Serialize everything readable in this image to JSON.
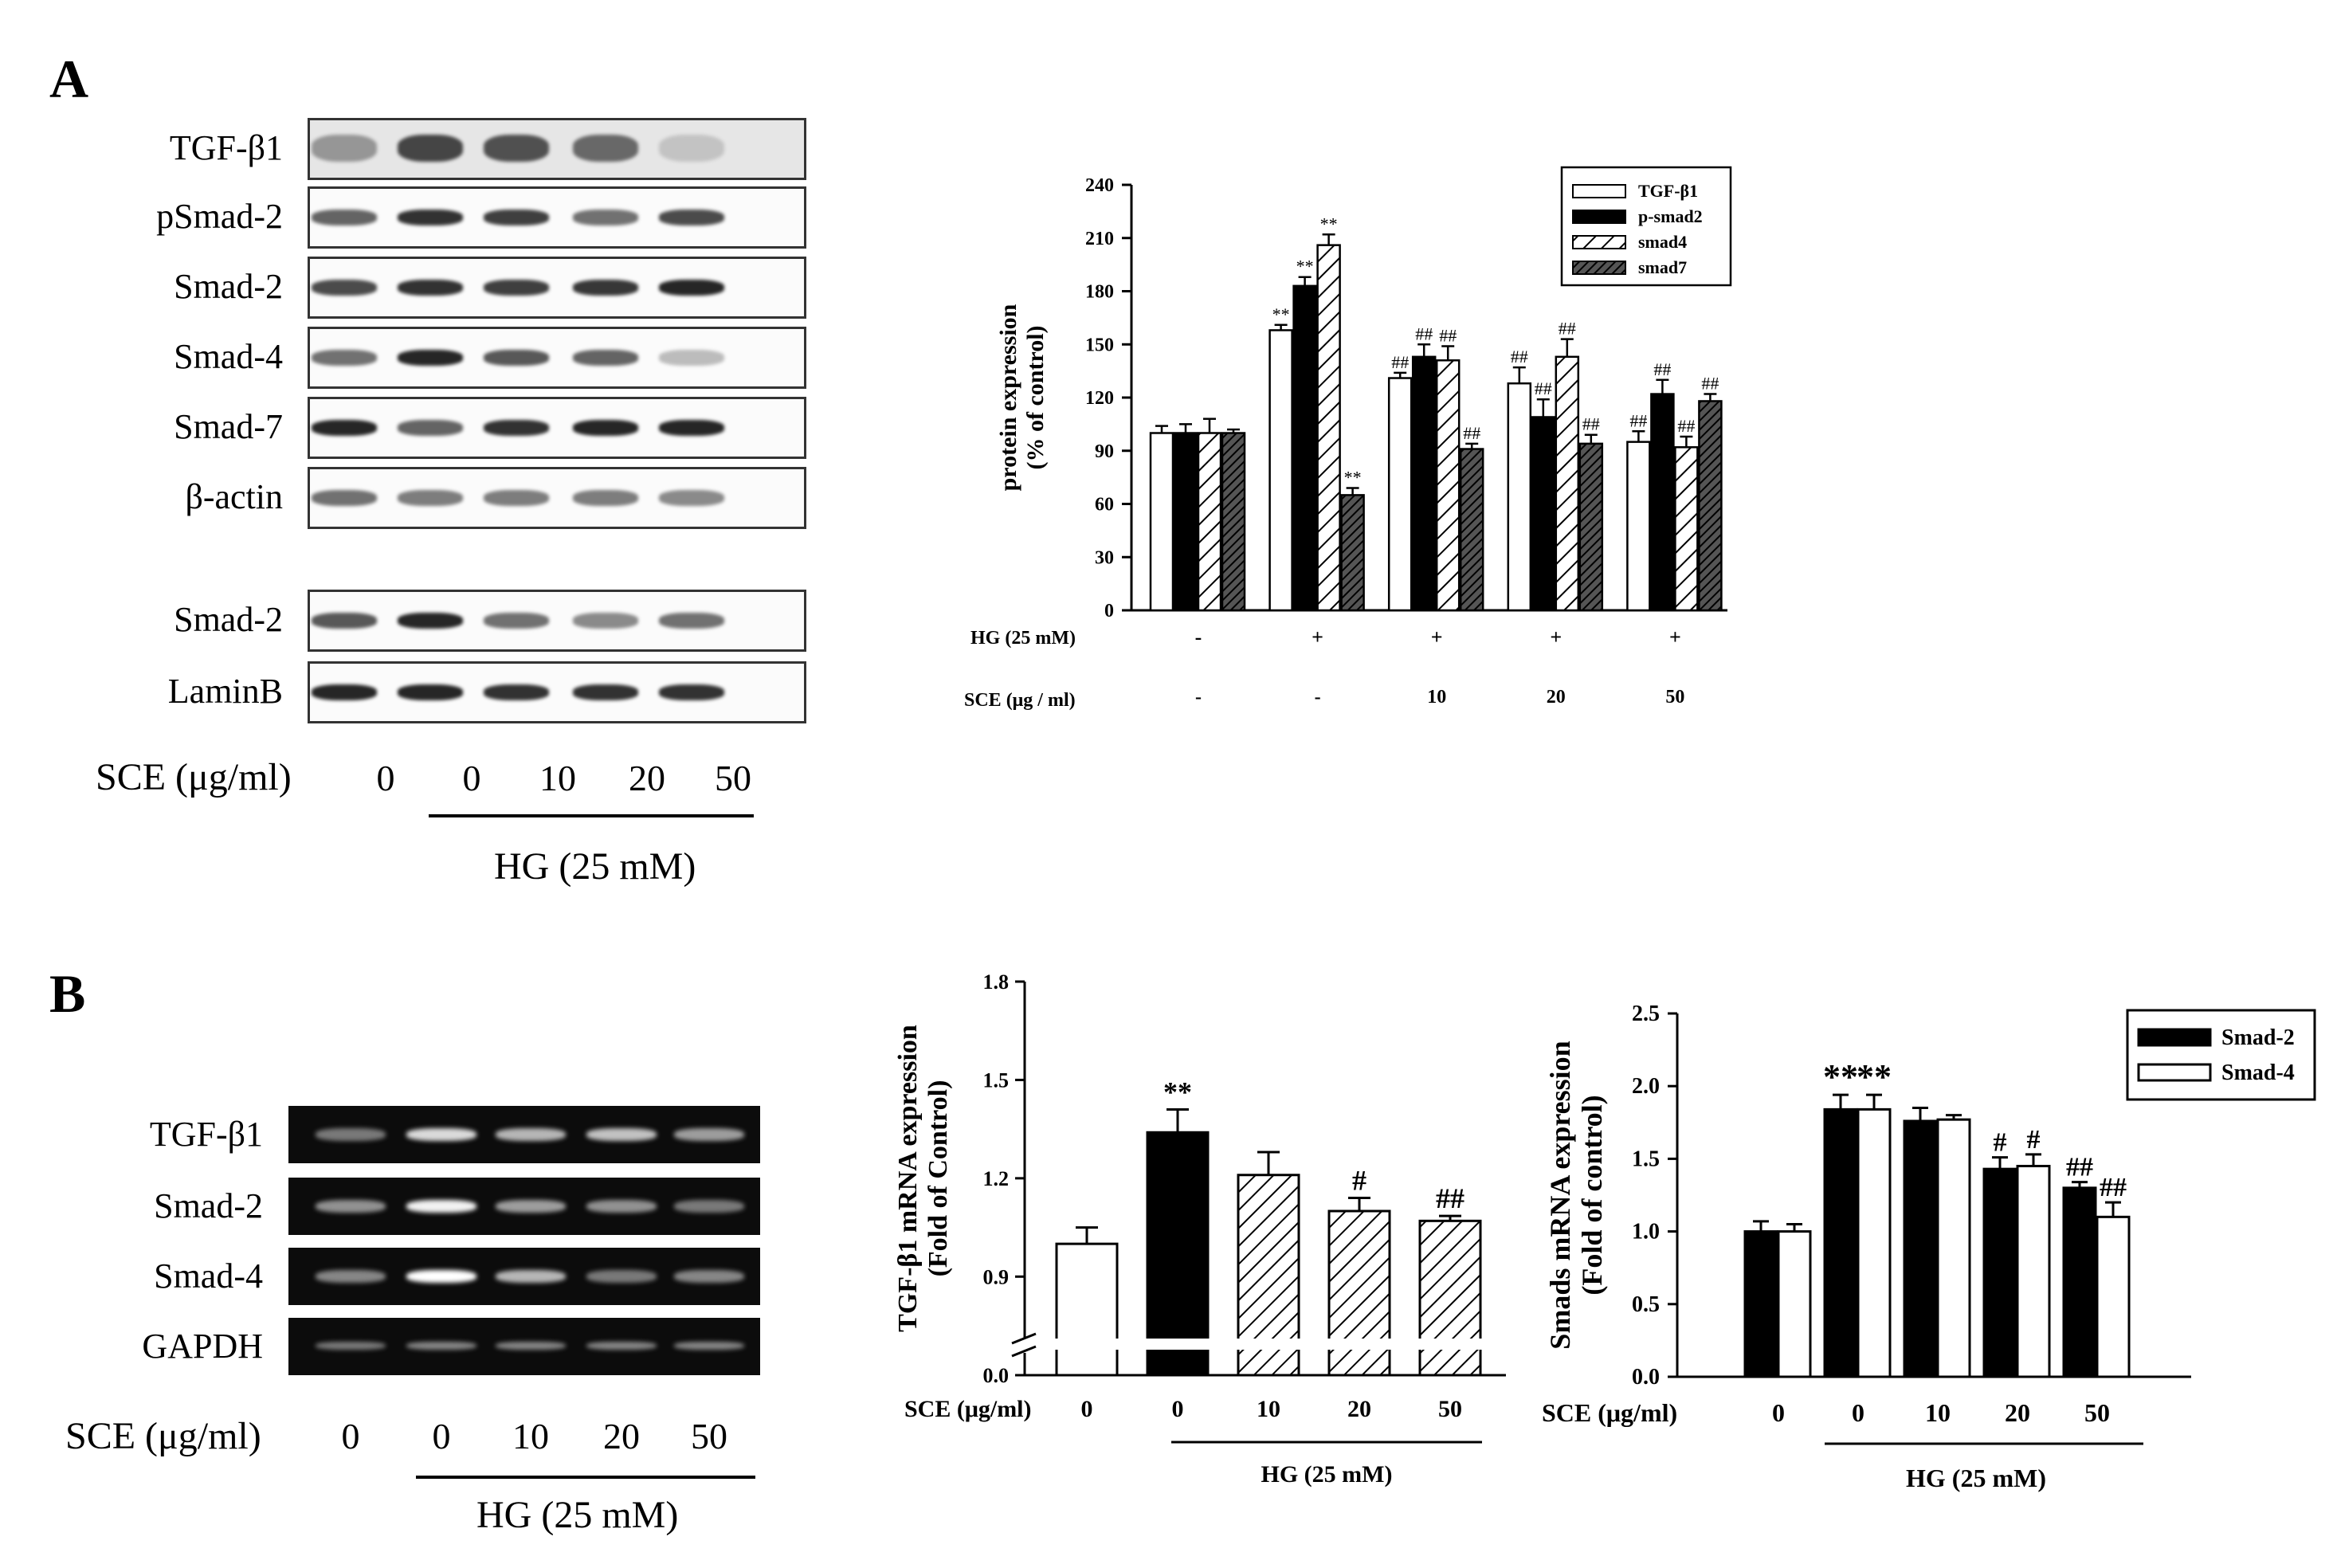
{
  "panel_a": {
    "letter": "A",
    "blot_labels": [
      "TGF-β1",
      "pSmad-2",
      "Smad-2",
      "Smad-4",
      "Smad-7",
      "β-actin",
      "Smad-2",
      "LaminB"
    ],
    "sce_label": "SCE (μg/ml)",
    "sce_values": [
      "0",
      "0",
      "10",
      "20",
      "50"
    ],
    "hg_label": "HG (25 mM)"
  },
  "panel_b": {
    "letter": "B",
    "gel_labels": [
      "TGF-β1",
      "Smad-2",
      "Smad-4",
      "GAPDH"
    ],
    "sce_label": "SCE (μg/ml)",
    "sce_values": [
      "0",
      "0",
      "10",
      "20",
      "50"
    ],
    "hg_label": "HG (25 mM)"
  },
  "chart_data": [
    {
      "type": "bar",
      "ylabel": "protein expression (% of control)",
      "ylim": [
        0,
        240
      ],
      "yticks": [
        "0",
        "30",
        "60",
        "90",
        "120",
        "150",
        "180",
        "210",
        "240"
      ],
      "row_labels": [
        "HG (25 mM)",
        "SCE (μg / ml)"
      ],
      "hg_row": [
        "-",
        "+",
        "+",
        "+",
        "+"
      ],
      "sce_row": [
        "-",
        "-",
        "10",
        "20",
        "50"
      ],
      "legend_position": "top-right",
      "series": [
        {
          "name": "TGF-β1",
          "values": [
            100,
            158,
            131,
            128,
            95
          ],
          "errors": [
            4,
            3,
            3,
            9,
            6
          ],
          "marks": [
            "",
            "**",
            "##",
            "##",
            "##"
          ],
          "fill": "white"
        },
        {
          "name": "p-smad2",
          "values": [
            100,
            183,
            143,
            109,
            122
          ],
          "errors": [
            5,
            5,
            7,
            10,
            8
          ],
          "marks": [
            "",
            "**",
            "##",
            "##",
            "##"
          ],
          "fill": "black"
        },
        {
          "name": "smad4",
          "values": [
            100,
            206,
            141,
            143,
            92
          ],
          "errors": [
            8,
            6,
            8,
            10,
            6
          ],
          "marks": [
            "",
            "**",
            "##",
            "##",
            "##"
          ],
          "fill": "hatch"
        },
        {
          "name": "smad7",
          "values": [
            100,
            65,
            91,
            94,
            118
          ],
          "errors": [
            2,
            4,
            3,
            5,
            4
          ],
          "marks": [
            "",
            "**",
            "##",
            "##",
            "##"
          ],
          "fill": "dense-hatch"
        }
      ]
    },
    {
      "type": "bar",
      "ylabel": "TGF-β1 mRNA expression (Fold of Control)",
      "yticks": [
        "0.0",
        "0.9",
        "1.2",
        "1.5",
        "1.8"
      ],
      "ylim": [
        0.75,
        1.8
      ],
      "axis_break": true,
      "xlabel_prefix": "SCE (μg/ml)",
      "categories": [
        "0",
        "0",
        "10",
        "20",
        "50"
      ],
      "group_label": "HG (25 mM)",
      "values": [
        1.0,
        1.34,
        1.21,
        1.1,
        1.07
      ],
      "errors": [
        0.05,
        0.07,
        0.07,
        0.04,
        0.015
      ],
      "marks": [
        "",
        "**",
        "",
        "#",
        "##"
      ],
      "fills": [
        "white",
        "black",
        "hatch",
        "hatch",
        "hatch"
      ]
    },
    {
      "type": "bar",
      "ylabel": "Smads mRNA expression (Fold of control)",
      "ylim": [
        0,
        2.5
      ],
      "yticks": [
        "0.0",
        "0.5",
        "1.0",
        "1.5",
        "2.0",
        "2.5"
      ],
      "xlabel_prefix": "SCE (μg/ml)",
      "categories": [
        "0",
        "0",
        "10",
        "20",
        "50"
      ],
      "group_label": "HG (25 mM)",
      "legend_position": "top-right",
      "series": [
        {
          "name": "Smad-2",
          "values": [
            1.0,
            1.84,
            1.76,
            1.43,
            1.3
          ],
          "errors": [
            0.07,
            0.1,
            0.09,
            0.08,
            0.04
          ],
          "marks": [
            "",
            "**",
            "",
            "#",
            "##"
          ],
          "fill": "black"
        },
        {
          "name": "Smad-4",
          "values": [
            1.0,
            1.84,
            1.77,
            1.45,
            1.1
          ],
          "errors": [
            0.05,
            0.1,
            0.03,
            0.08,
            0.1
          ],
          "marks": [
            "",
            "**",
            "",
            "#",
            "##"
          ],
          "fill": "white"
        }
      ]
    }
  ]
}
